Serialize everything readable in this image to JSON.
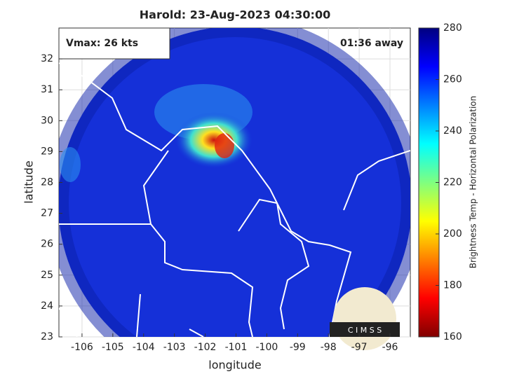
{
  "chart_data": {
    "type": "map",
    "title": "Harold: 23-Aug-2023 04:30:00",
    "xlabel": "longitude",
    "ylabel": "latitude",
    "xlim": [
      -106.75,
      -95.34
    ],
    "ylim": [
      23,
      33
    ],
    "xticks": [
      -106,
      -105,
      -104,
      -103,
      -102,
      -101,
      -100,
      -99,
      -98,
      -97,
      -96
    ],
    "yticks": [
      23,
      24,
      25,
      26,
      27,
      28,
      29,
      30,
      31,
      32
    ],
    "grid": true,
    "annotations": [
      "Vmax: 26 kts",
      "01:36 away"
    ],
    "colorbar": {
      "label": "Brightness Temp - Horizontal Polarization",
      "clim": [
        160,
        280
      ],
      "ticks": [
        160,
        180,
        200,
        220,
        240,
        260,
        280
      ]
    },
    "logo_text": "C I M S S"
  }
}
